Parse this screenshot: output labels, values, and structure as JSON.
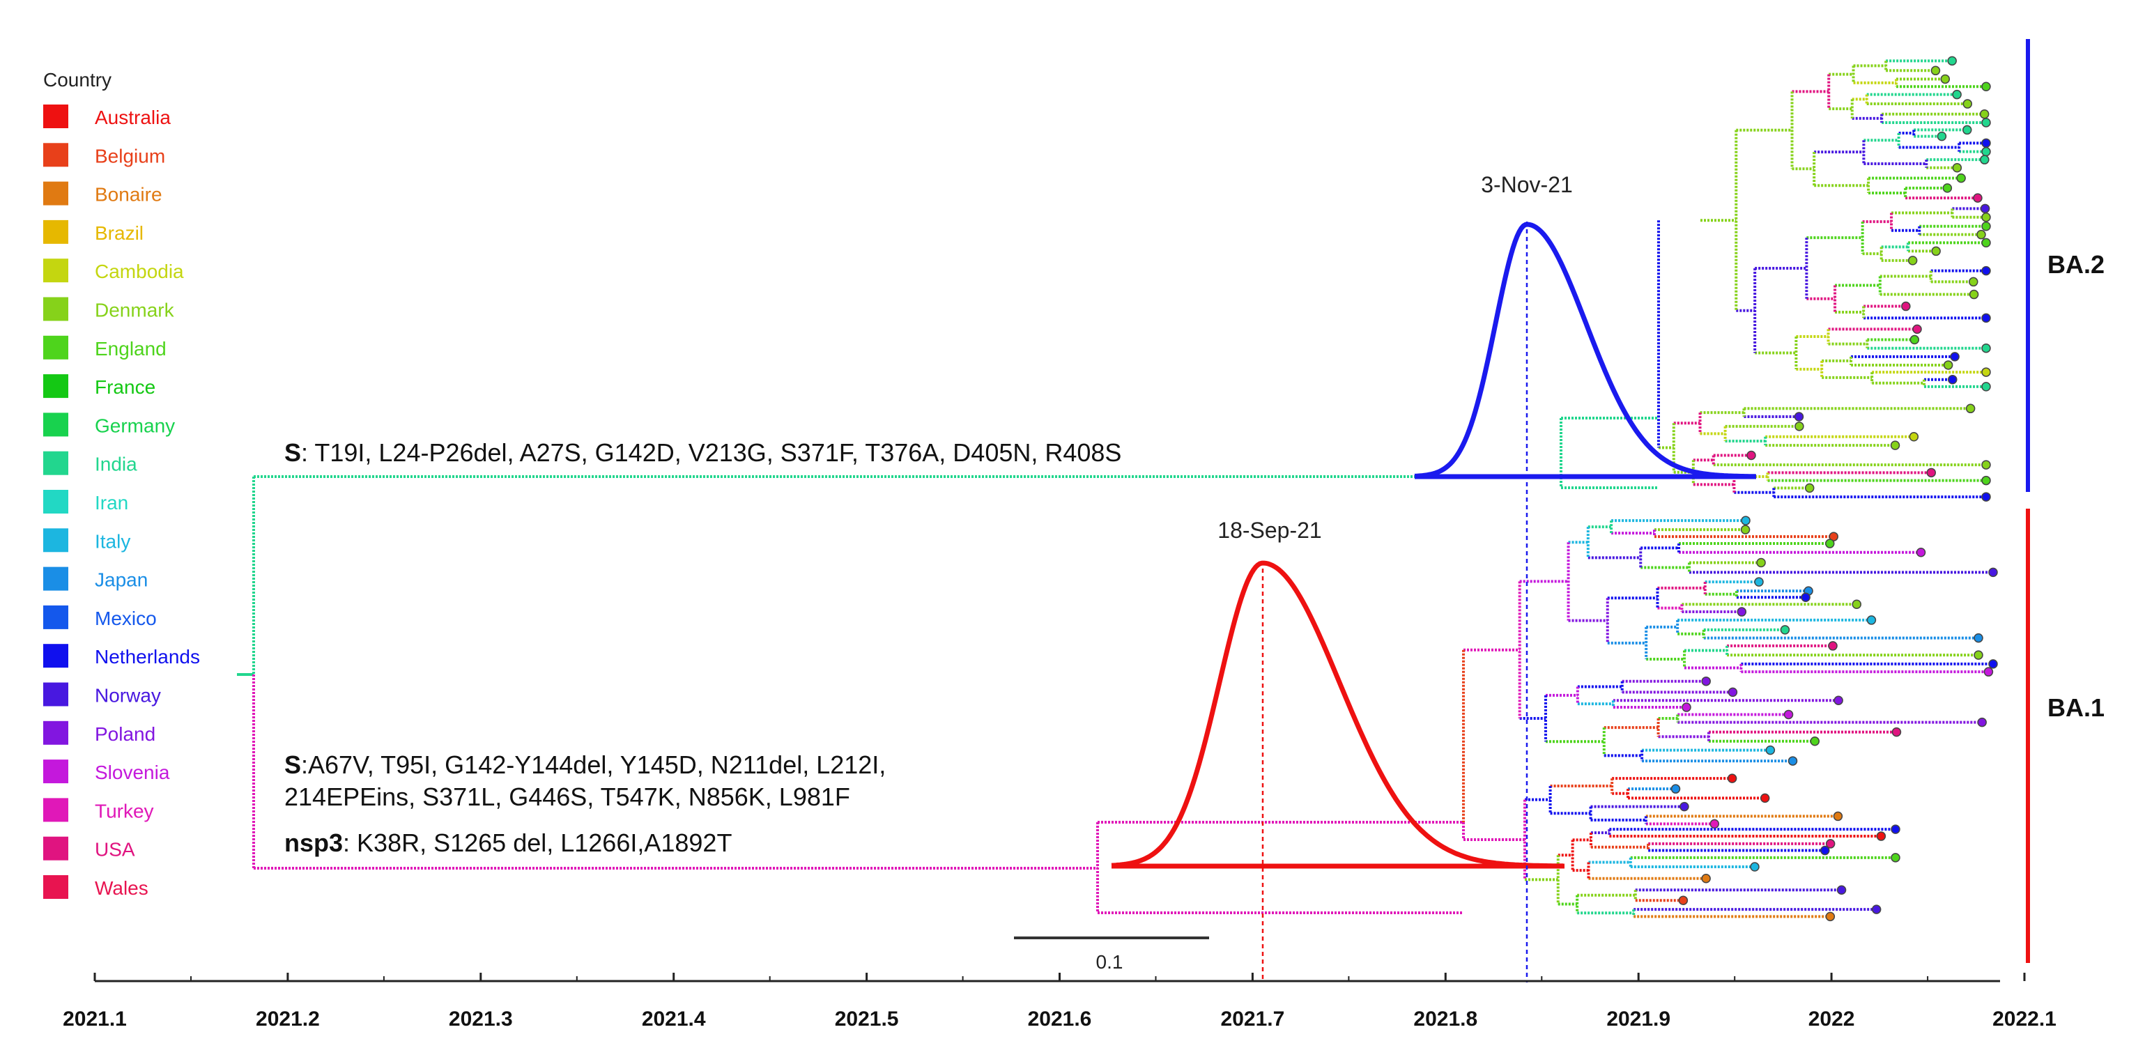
{
  "legend": {
    "title": "Country",
    "items": [
      {
        "label": "Australia",
        "color": "#ee1111"
      },
      {
        "label": "Belgium",
        "color": "#e8401a"
      },
      {
        "label": "Bonaire",
        "color": "#e07a12"
      },
      {
        "label": "Brazil",
        "color": "#e6b800"
      },
      {
        "label": "Cambodia",
        "color": "#c4d610"
      },
      {
        "label": "Denmark",
        "color": "#86d21a"
      },
      {
        "label": "England",
        "color": "#4ed41c"
      },
      {
        "label": "France",
        "color": "#14c814"
      },
      {
        "label": "Germany",
        "color": "#18d24e"
      },
      {
        "label": "India",
        "color": "#22d68e"
      },
      {
        "label": "Iran",
        "color": "#22d8c4"
      },
      {
        "label": "Italy",
        "color": "#1cb6e0"
      },
      {
        "label": "Japan",
        "color": "#1a8ee6"
      },
      {
        "label": "Mexico",
        "color": "#1458ec"
      },
      {
        "label": "Netherlands",
        "color": "#1010ee"
      },
      {
        "label": "Norway",
        "color": "#4818e0"
      },
      {
        "label": "Poland",
        "color": "#8216e0"
      },
      {
        "label": "Slovenia",
        "color": "#c418dc"
      },
      {
        "label": "Turkey",
        "color": "#e018b8"
      },
      {
        "label": "USA",
        "color": "#e01480"
      },
      {
        "label": "Wales",
        "color": "#e81450"
      }
    ]
  },
  "mutations": {
    "ba2": {
      "gene": "S",
      "text": ": T19I, L24-P26del, A27S, G142D, V213G, S371F, T376A, D405N, R408S"
    },
    "ba1_line1": {
      "gene": "S",
      "text": ":A67V, T95I, G142-Y144del, Y145D, N211del, L212I,"
    },
    "ba1_line2": {
      "text": "214EPEins, S371L, G446S, T547K, N856K, L981F"
    },
    "ba1_line3": {
      "gene": "nsp3",
      "text": ": K38R, S1265 del, L1266I,A1892T"
    }
  },
  "peaks": {
    "ba2": {
      "label": "3-Nov-21",
      "color": "#1a1aee"
    },
    "ba1": {
      "label": "18-Sep-21",
      "color": "#ee1111"
    }
  },
  "clades": {
    "ba2": {
      "label": "BA.2",
      "color": "#1a1aee"
    },
    "ba1": {
      "label": "BA.1",
      "color": "#ee1111"
    }
  },
  "scale_bar": {
    "label": "0.1"
  },
  "axis": {
    "ticks": [
      "2021.1",
      "2021.2",
      "2021.3",
      "2021.4",
      "2021.5",
      "2021.6",
      "2021.7",
      "2021.8",
      "2021.9",
      "2022",
      "2022.1"
    ]
  }
}
